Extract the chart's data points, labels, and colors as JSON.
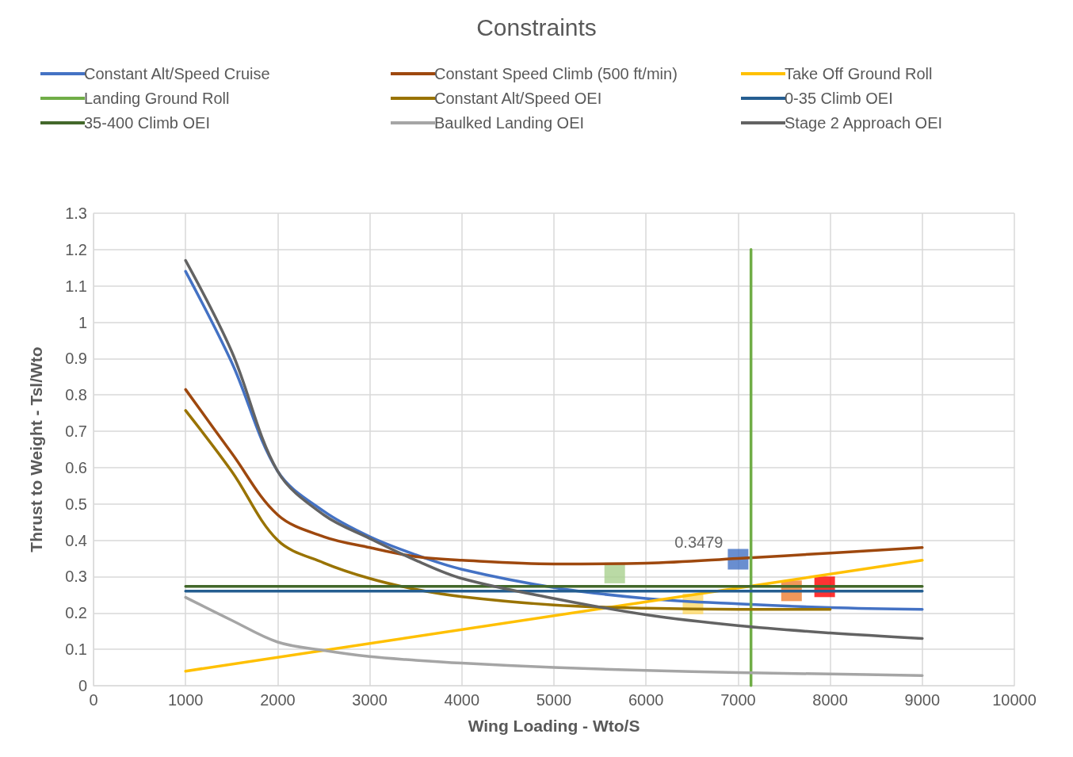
{
  "chart_data": {
    "type": "line",
    "title": "Constraints",
    "xlabel": "Wing Loading - Wto/S",
    "ylabel": "Thrust to Weight - Tsl/Wto",
    "x": [
      1000,
      1500,
      2000,
      2500,
      3000,
      3500,
      4000,
      5000,
      6000,
      7000,
      8000,
      9000
    ],
    "series": [
      {
        "name": "Constant Alt/Speed Cruise",
        "color": "#4472c4",
        "values": [
          1.14,
          0.89,
          0.59,
          0.48,
          0.41,
          0.36,
          0.32,
          0.27,
          0.24,
          0.225,
          0.215,
          0.21
        ]
      },
      {
        "name": "Constant Speed Climb (500 ft/min)",
        "color": "#9e480e",
        "values": [
          0.815,
          0.64,
          0.47,
          0.41,
          0.38,
          0.355,
          0.345,
          0.335,
          0.337,
          0.35,
          0.365,
          0.38
        ]
      },
      {
        "name": "Take Off Ground Roll",
        "color": "#ffc000",
        "x": [
          1000,
          9000
        ],
        "values": [
          0.04,
          0.345
        ]
      },
      {
        "name": "Landing Ground Roll",
        "color": "#70ad47",
        "x": [
          7140,
          7140
        ],
        "values": [
          0,
          1.2
        ]
      },
      {
        "name": "Constant Alt/Speed OEI",
        "color": "#997300",
        "values": [
          0.757,
          0.59,
          0.4,
          0.338,
          0.295,
          0.265,
          0.245,
          0.222,
          0.213,
          0.21,
          0.21,
          null
        ]
      },
      {
        "name": "0-35 Climb OEI",
        "color": "#255e91",
        "x": [
          1000,
          9000
        ],
        "values": [
          0.26,
          0.26
        ]
      },
      {
        "name": "35-400 Climb OEI",
        "color": "#43682b",
        "x": [
          1000,
          9000
        ],
        "values": [
          0.273,
          0.273
        ]
      },
      {
        "name": "Baulked Landing OEI",
        "color": "#a5a5a5",
        "values": [
          0.243,
          0.18,
          0.12,
          0.097,
          0.08,
          0.07,
          0.062,
          0.05,
          0.042,
          0.036,
          0.032,
          0.028
        ]
      },
      {
        "name": "Stage 2 Approach OEI",
        "color": "#636363",
        "values": [
          1.17,
          0.92,
          0.59,
          0.47,
          0.405,
          0.345,
          0.295,
          0.24,
          0.195,
          0.165,
          0.145,
          0.13
        ]
      },
      {
        "type": "scatter",
        "marker": "square",
        "color": "#ffd966",
        "x": [
          6510
        ],
        "values": [
          0.225
        ]
      },
      {
        "type": "scatter",
        "marker": "square",
        "color": "#ff0000",
        "x": [
          7940
        ],
        "values": [
          0.272
        ]
      },
      {
        "type": "scatter",
        "marker": "square",
        "color": "#ed7d31",
        "x": [
          7580
        ],
        "values": [
          0.261
        ]
      },
      {
        "type": "scatter",
        "marker": "square",
        "color": "#a9d18e",
        "x": [
          5660
        ],
        "values": [
          0.31
        ]
      },
      {
        "type": "scatter",
        "marker": "square",
        "color": "#4472c4",
        "x": [
          7000
        ],
        "values": [
          0.3479
        ],
        "value_labels": [
          "0.3479"
        ]
      }
    ],
    "xlim": [
      0,
      10000
    ],
    "xticks": [
      0,
      1000,
      2000,
      3000,
      4000,
      5000,
      6000,
      7000,
      8000,
      9000,
      10000
    ],
    "ylim": [
      0,
      1.3
    ],
    "yticks": [
      0,
      0.1,
      0.2,
      0.3,
      0.4,
      0.5,
      0.6,
      0.7,
      0.8,
      0.9,
      1,
      1.1,
      1.2,
      1.3
    ],
    "grid": true,
    "legend": "top",
    "marker": "none",
    "line_style": "solid"
  }
}
